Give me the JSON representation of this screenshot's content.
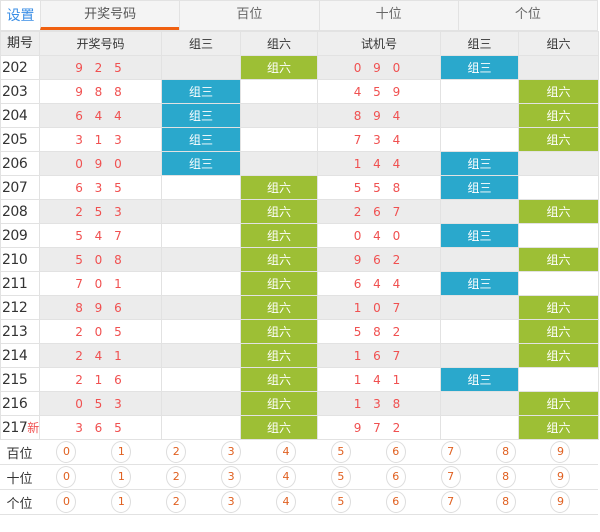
{
  "tabs": {
    "settings": "设置",
    "items": [
      "开奖号码",
      "百位",
      "十位",
      "个位"
    ],
    "active": 0
  },
  "headers": [
    "期号",
    "开奖号码",
    "组三",
    "组六",
    "试机号",
    "组三",
    "组六"
  ],
  "new_label": "新",
  "rows": [
    {
      "period": "202",
      "draw": "9 2 5",
      "draw_type": "组六",
      "trial": "0 9 0",
      "trial_type": "组三"
    },
    {
      "period": "203",
      "draw": "9 8 8",
      "draw_type": "组三",
      "trial": "4 5 9",
      "trial_type": "组六"
    },
    {
      "period": "204",
      "draw": "6 4 4",
      "draw_type": "组三",
      "trial": "8 9 4",
      "trial_type": "组六"
    },
    {
      "period": "205",
      "draw": "3 1 3",
      "draw_type": "组三",
      "trial": "7 3 4",
      "trial_type": "组六"
    },
    {
      "period": "206",
      "draw": "0 9 0",
      "draw_type": "组三",
      "trial": "1 4 4",
      "trial_type": "组三"
    },
    {
      "period": "207",
      "draw": "6 3 5",
      "draw_type": "组六",
      "trial": "5 5 8",
      "trial_type": "组三"
    },
    {
      "period": "208",
      "draw": "2 5 3",
      "draw_type": "组六",
      "trial": "2 6 7",
      "trial_type": "组六"
    },
    {
      "period": "209",
      "draw": "5 4 7",
      "draw_type": "组六",
      "trial": "0 4 0",
      "trial_type": "组三"
    },
    {
      "period": "210",
      "draw": "5 0 8",
      "draw_type": "组六",
      "trial": "9 6 2",
      "trial_type": "组六"
    },
    {
      "period": "211",
      "draw": "7 0 1",
      "draw_type": "组六",
      "trial": "6 4 4",
      "trial_type": "组三"
    },
    {
      "period": "212",
      "draw": "8 9 6",
      "draw_type": "组六",
      "trial": "1 0 7",
      "trial_type": "组六"
    },
    {
      "period": "213",
      "draw": "2 0 5",
      "draw_type": "组六",
      "trial": "5 8 2",
      "trial_type": "组六"
    },
    {
      "period": "214",
      "draw": "2 4 1",
      "draw_type": "组六",
      "trial": "1 6 7",
      "trial_type": "组六"
    },
    {
      "period": "215",
      "draw": "2 1 6",
      "draw_type": "组六",
      "trial": "1 4 1",
      "trial_type": "组三"
    },
    {
      "period": "216",
      "draw": "0 5 3",
      "draw_type": "组六",
      "trial": "1 3 8",
      "trial_type": "组六"
    },
    {
      "period": "217",
      "draw": "3 6 5",
      "draw_type": "组六",
      "trial": "9 7 2",
      "trial_type": "组六",
      "is_new": true
    }
  ],
  "positions": [
    "百位",
    "十位",
    "个位"
  ],
  "digits": [
    "0",
    "1",
    "2",
    "3",
    "4",
    "5",
    "6",
    "7",
    "8",
    "9"
  ],
  "colors": {
    "group3": "#2aa8cc",
    "group6": "#9dbf35",
    "accent": "#f06010",
    "number": "#f05050"
  }
}
